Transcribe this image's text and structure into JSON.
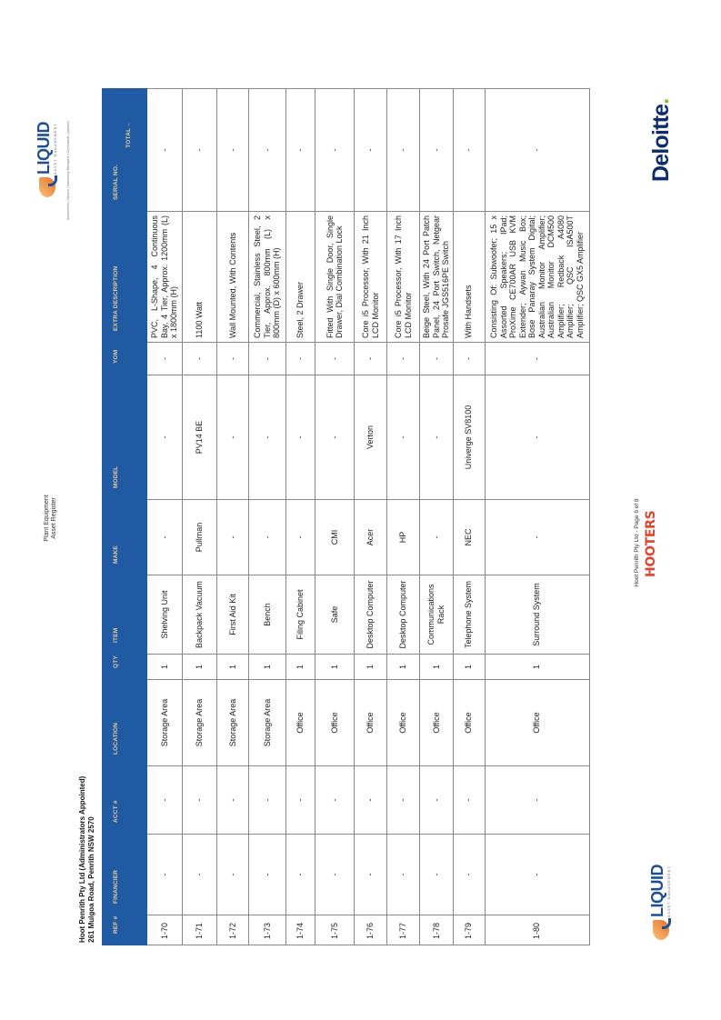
{
  "document": {
    "title_line1": "Plant Equipment",
    "title_line2": "Asset Register"
  },
  "company": {
    "name": "Hoot Penrith Pty Ltd (Administrators Appointed)",
    "address": "261 Mulgoa Road, Penrith NSW 2570"
  },
  "logos": {
    "liquid_top": {
      "word": "LIQUID",
      "sub": "ASSET MANAGEMENT",
      "tagline": "Auctioneers | Valuers | Insolvency Managers | Consultants | Advisors"
    },
    "liquid_bottom": {
      "word": "LIQUID",
      "sub": "ASSET MANAGEMENT"
    },
    "deloitte": {
      "word": "Deloitte",
      "dot": "."
    },
    "hooters": "HOOTERS"
  },
  "colors": {
    "header_blue": "#1f5aa3",
    "header_text": "#e9c99b",
    "liquid_blue": "#1e4f95",
    "deloitte_green": "#86bc25"
  },
  "footer": {
    "text": "Hoot Penrith Pty Ltd - Page 6 of 8"
  },
  "table": {
    "headers": [
      "REF #",
      "FINANCIER",
      "ACCT #",
      "LOCATION",
      "QTY",
      "ITEM",
      "MAKE",
      "MODEL",
      "YOM",
      "EXTRA DESCRIPTION",
      "SERIAL NO."
    ],
    "total_label": "TOTAL→",
    "rows": [
      [
        "1-70",
        "-",
        "-",
        "Storage Area",
        "1",
        "Shelving Unit",
        "-",
        "-",
        "-",
        "PVC, L-Shape, 4 Continuous Bay, 4 Tier, Approx. 1200mm (L) x 1800mm (H)",
        "-"
      ],
      [
        "1-71",
        "-",
        "-",
        "Storage Area",
        "1",
        "Backpack Vacuum",
        "Pullman",
        "PV14 BE",
        "-",
        "1100 Watt",
        "-"
      ],
      [
        "1-72",
        "-",
        "-",
        "Storage Area",
        "1",
        "First Aid Kit",
        "-",
        "-",
        "-",
        "Wall Mounted, With Contents",
        "-"
      ],
      [
        "1-73",
        "-",
        "-",
        "Storage Area",
        "1",
        "Bench",
        "-",
        "-",
        "-",
        "Commercial, Stainless Steel, 2 Tier, Approx. 800mm (L) x 800mm (D) x 600mm (H)",
        "-"
      ],
      [
        "1-74",
        "-",
        "-",
        "Office",
        "1",
        "Filing Cabinet",
        "-",
        "-",
        "-",
        "Steel, 2 Drawer",
        "-"
      ],
      [
        "1-75",
        "-",
        "-",
        "Office",
        "1",
        "Safe",
        "CMI",
        "-",
        "-",
        "Fitted With Single Door, Single Drawer, Dial Combination Lock",
        "-"
      ],
      [
        "1-76",
        "-",
        "-",
        "Office",
        "1",
        "Desktop Computer",
        "Acer",
        "Verton",
        "-",
        "Core i5 Processor, With 21 Inch LCD Monitor",
        "-"
      ],
      [
        "1-77",
        "-",
        "-",
        "Office",
        "1",
        "Desktop Computer",
        "HP",
        "-",
        "-",
        "Core i5 Processor, With 17 Inch LCD Monitor",
        "-"
      ],
      [
        "1-78",
        "-",
        "-",
        "Office",
        "1",
        "Communications Rack",
        "-",
        "-",
        "-",
        "Beige Steel, With 24 Port Patch Panel, 24 Port Switch, Netgear Prosafe JGS516PE Switch",
        "-"
      ],
      [
        "1-79",
        "-",
        "-",
        "Office",
        "1",
        "Telephone System",
        "NEC",
        "Univerge SV8100",
        "-",
        "With Handsets",
        "-"
      ],
      [
        "1-80",
        "-",
        "-",
        "Office",
        "1",
        "Surround System",
        "-",
        "-",
        "-",
        "Consisting Of: Subwoofer; 15 x Assorted Speakers; IPad; ProXime CE700AR USB KVM Extender; Aywan Music Box; Bose Panaray System Digital; Australian Monitor Amplifier; Australian Monitor DCM500 Amplifier; Redback A4080 Amplifier; QSC ISA500T Amplifier; QSC GX5 Amplifier",
        "-"
      ]
    ]
  }
}
